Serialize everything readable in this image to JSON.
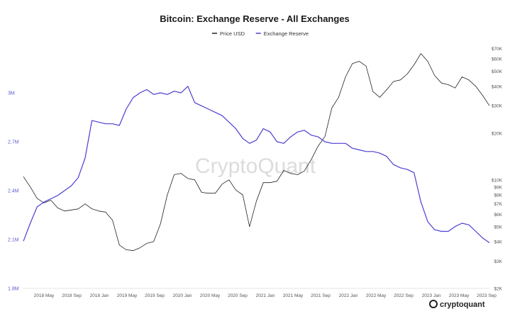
{
  "chart_data": {
    "type": "line",
    "title": "Bitcoin: Exchange Reserve - All Exchanges",
    "watermark": "CryptoQuant",
    "brand": "cryptoquant",
    "x_ticks": [
      "2018 May",
      "2018 Sep",
      "2018 Jan",
      "2019 May",
      "2019 Sep",
      "2020 Jan",
      "2020 May",
      "2020 Sep",
      "2021 Jan",
      "2021 May",
      "2021 Sep",
      "2022 Jan",
      "2022 May",
      "2022 Sep",
      "2023 Jan",
      "2023 May",
      "2023 Sep"
    ],
    "left_axis": {
      "ticks": [
        "1.8M",
        "2.1M",
        "2.4M",
        "2.7M",
        "3M"
      ],
      "tick_values": [
        1800000,
        2100000,
        2400000,
        2700000,
        3000000
      ],
      "range": [
        1800000,
        3300000
      ]
    },
    "right_axis": {
      "scale": "log",
      "ticks": [
        "$2K",
        "$3K",
        "$4K",
        "$5K",
        "$6K",
        "$7K",
        "$8K",
        "$9K",
        "$10K",
        "$20K",
        "$30K",
        "$40K",
        "$50K",
        "$60K",
        "$70K"
      ],
      "tick_values": [
        2000,
        3000,
        4000,
        5000,
        6000,
        7000,
        8000,
        9000,
        10000,
        20000,
        30000,
        40000,
        50000,
        60000,
        70000
      ],
      "range": [
        2000,
        75000
      ]
    },
    "x_range": [
      0,
      68
    ],
    "series": [
      {
        "name": "Price USD",
        "axis": "right",
        "color": "#222222",
        "x": [
          0,
          1,
          2,
          3,
          4,
          5,
          6,
          7,
          8,
          9,
          10,
          11,
          12,
          13,
          14,
          15,
          16,
          17,
          18,
          19,
          20,
          21,
          22,
          23,
          24,
          25,
          26,
          27,
          28,
          29,
          30,
          31,
          32,
          33,
          34,
          35,
          36,
          37,
          38,
          39,
          40,
          41,
          42,
          43,
          44,
          45,
          46,
          47,
          48,
          49,
          50,
          51,
          52,
          53,
          54,
          55,
          56,
          57,
          58,
          59,
          60,
          61,
          62,
          63,
          64,
          65,
          66,
          67,
          68
        ],
        "values": [
          10500,
          9000,
          7600,
          7100,
          7400,
          6600,
          6300,
          6400,
          6500,
          7000,
          6500,
          6300,
          6200,
          5500,
          3800,
          3550,
          3500,
          3650,
          3900,
          4000,
          5200,
          8000,
          10800,
          11000,
          10200,
          10000,
          8300,
          8200,
          8200,
          9400,
          10000,
          8600,
          8000,
          5000,
          7300,
          9600,
          9600,
          9800,
          11500,
          11000,
          10800,
          11400,
          13500,
          16500,
          19000,
          29000,
          34000,
          46000,
          56000,
          58000,
          54000,
          37000,
          34000,
          38000,
          43000,
          44000,
          48000,
          55000,
          65000,
          58000,
          47000,
          42000,
          41000,
          39000,
          46000,
          44000,
          40000,
          35000,
          30000
        ]
      },
      {
        "name": "Exchange Reserve",
        "axis": "left",
        "color": "#4b3fd0",
        "x": [
          0,
          1,
          2,
          3,
          4,
          5,
          6,
          7,
          8,
          9,
          10,
          11,
          12,
          13,
          14,
          15,
          16,
          17,
          18,
          19,
          20,
          21,
          22,
          23,
          24,
          25,
          26,
          27,
          28,
          29,
          30,
          31,
          32,
          33,
          34,
          35,
          36,
          37,
          38,
          39,
          40,
          41,
          42,
          43,
          44,
          45,
          46,
          47,
          48,
          49,
          50,
          51,
          52,
          53,
          54,
          55,
          56,
          57,
          58,
          59,
          60,
          61,
          62,
          63,
          64,
          65,
          66,
          67,
          68
        ],
        "values": [
          2090000,
          2200000,
          2300000,
          2330000,
          2350000,
          2370000,
          2400000,
          2430000,
          2480000,
          2600000,
          2830000,
          2820000,
          2810000,
          2810000,
          2800000,
          2900000,
          2970000,
          3000000,
          3020000,
          2990000,
          3000000,
          2990000,
          3010000,
          3000000,
          3040000,
          2940000,
          2920000,
          2900000,
          2880000,
          2860000,
          2820000,
          2780000,
          2720000,
          2690000,
          2710000,
          2780000,
          2760000,
          2700000,
          2690000,
          2730000,
          2760000,
          2770000,
          2740000,
          2730000,
          2700000,
          2690000,
          2690000,
          2690000,
          2660000,
          2650000,
          2640000,
          2640000,
          2630000,
          2610000,
          2560000,
          2540000,
          2530000,
          2510000,
          2330000,
          2210000,
          2160000,
          2150000,
          2150000,
          2180000,
          2200000,
          2190000,
          2150000,
          2110000,
          2080000
        ]
      }
    ]
  }
}
